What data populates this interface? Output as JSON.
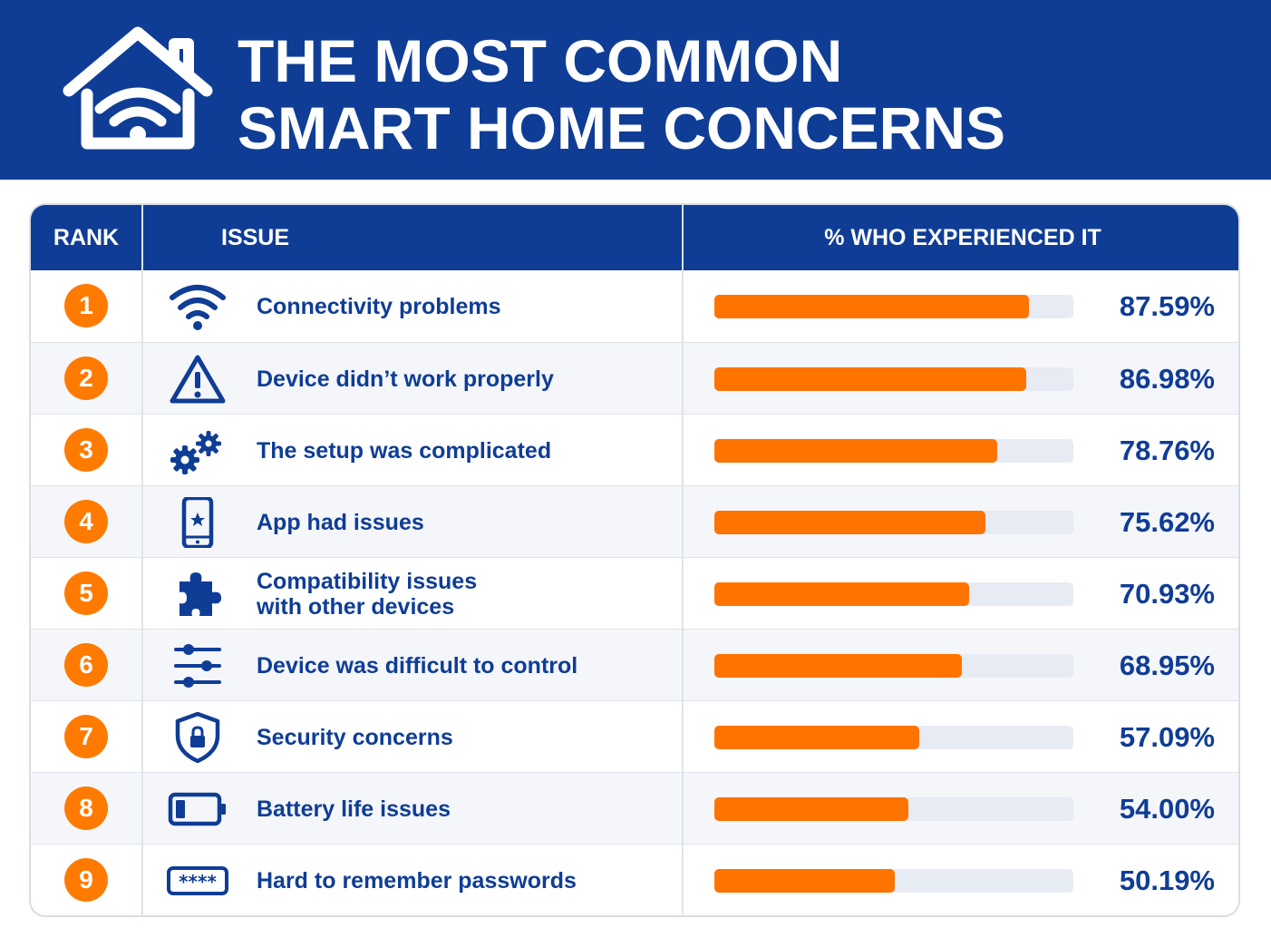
{
  "header": {
    "title_line1": "THE MOST COMMON",
    "title_line2": "SMART HOME CONCERNS",
    "icon": "smart-home-wifi-icon"
  },
  "colors": {
    "header_bg": "#0f3d96",
    "accent": "#ff7300",
    "text": "#0f3d96",
    "track": "#e7ebf3"
  },
  "table": {
    "col_rank": "RANK",
    "col_issue": "ISSUE",
    "col_pct": "% WHO EXPERIENCED IT"
  },
  "chart_data": {
    "type": "bar",
    "orientation": "horizontal",
    "title": "THE MOST COMMON SMART HOME CONCERNS",
    "xlabel": "% WHO EXPERIENCED IT",
    "ylabel": "ISSUE",
    "xlim": [
      0,
      100
    ],
    "categories": [
      "Connectivity problems",
      "Device didn’t work properly",
      "The setup was complicated",
      "App had issues",
      "Compatibility issues with other devices",
      "Device was difficult to control",
      "Security concerns",
      "Battery life issues",
      "Hard to remember passwords"
    ],
    "values": [
      87.59,
      86.98,
      78.76,
      75.62,
      70.93,
      68.95,
      57.09,
      54.0,
      50.19
    ],
    "rows": [
      {
        "rank": "1",
        "icon": "wifi-icon",
        "label": "Connectivity problems",
        "value": 87.59,
        "value_label": "87.59%"
      },
      {
        "rank": "2",
        "icon": "warning-triangle-icon",
        "label": "Device didn’t work properly",
        "value": 86.98,
        "value_label": "86.98%"
      },
      {
        "rank": "3",
        "icon": "gears-icon",
        "label": "The setup was complicated",
        "value": 78.76,
        "value_label": "78.76%"
      },
      {
        "rank": "4",
        "icon": "smartphone-icon",
        "label": "App had issues",
        "value": 75.62,
        "value_label": "75.62%"
      },
      {
        "rank": "5",
        "icon": "puzzle-piece-icon",
        "label": "Compatibility issues\nwith other devices",
        "value": 70.93,
        "value_label": "70.93%"
      },
      {
        "rank": "6",
        "icon": "sliders-icon",
        "label": "Device was difficult to control",
        "value": 68.95,
        "value_label": "68.95%"
      },
      {
        "rank": "7",
        "icon": "shield-lock-icon",
        "label": "Security concerns",
        "value": 57.09,
        "value_label": "57.09%"
      },
      {
        "rank": "8",
        "icon": "low-battery-icon",
        "label": "Battery life issues",
        "value": 54.0,
        "value_label": "54.00%"
      },
      {
        "rank": "9",
        "icon": "password-field-icon",
        "label": "Hard to remember passwords",
        "value": 50.19,
        "value_label": "50.19%"
      }
    ]
  }
}
